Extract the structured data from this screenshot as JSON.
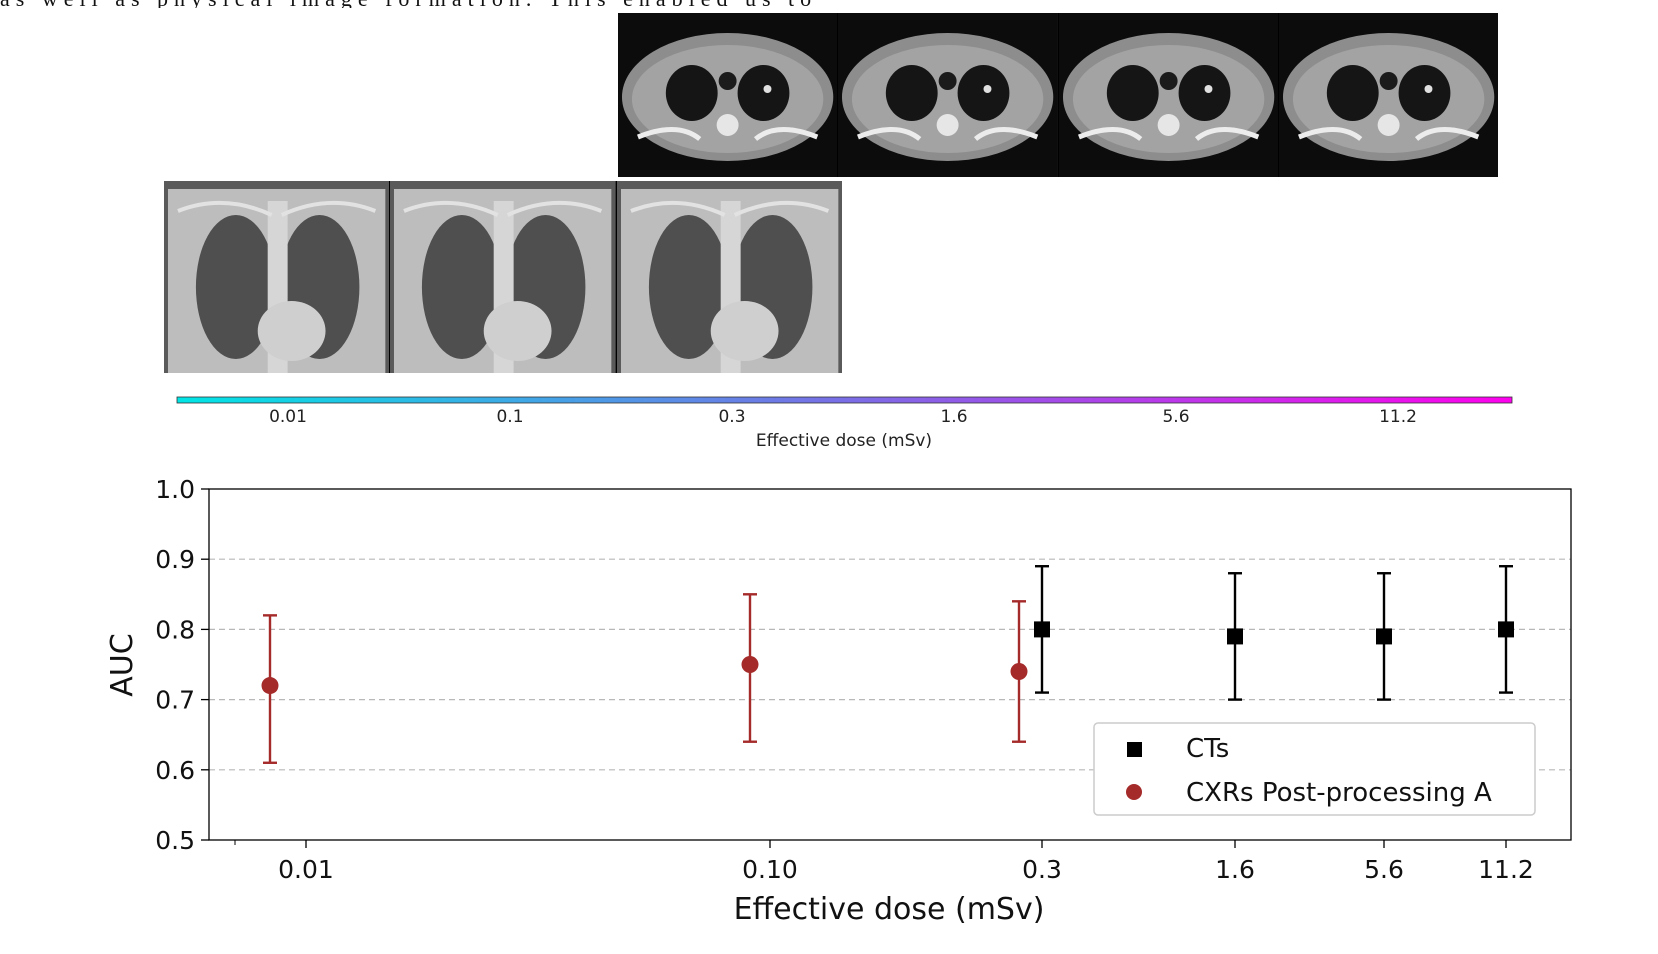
{
  "page": {
    "top_text": "as well as physical image formation. This enabled us to"
  },
  "images": {
    "ct_panels": [
      "ct-slice",
      "ct-slice",
      "ct-slice",
      "ct-slice"
    ],
    "cxr_panels": [
      "chest-xray",
      "chest-xray",
      "chest-xray"
    ]
  },
  "color_scale": {
    "ticks": [
      "0.01",
      "0.1",
      "0.3",
      "1.6",
      "5.6",
      "11.2"
    ],
    "label": "Effective dose (mSv)",
    "colors": [
      "#00e5e5",
      "#ff00ee"
    ]
  },
  "chart_data": {
    "type": "scatter",
    "xlabel": "Effective dose (mSv)",
    "ylabel": "AUC",
    "ylim": [
      0.5,
      1.0
    ],
    "yticks": [
      "0.5",
      "0.6",
      "0.7",
      "0.8",
      "0.9",
      "1.0"
    ],
    "xticks": [
      "0.01",
      "0.10",
      "0.3",
      "1.6",
      "5.6",
      "11.2"
    ],
    "grid": "horizontal dashed",
    "legend_position": "lower-right",
    "series": [
      {
        "name": "CTs",
        "marker": "square",
        "color": "#000000",
        "points": [
          {
            "x": 0.3,
            "y": 0.8,
            "lo": 0.71,
            "hi": 0.89
          },
          {
            "x": 1.6,
            "y": 0.79,
            "lo": 0.7,
            "hi": 0.88
          },
          {
            "x": 5.6,
            "y": 0.79,
            "lo": 0.7,
            "hi": 0.88
          },
          {
            "x": 11.2,
            "y": 0.8,
            "lo": 0.71,
            "hi": 0.89
          }
        ]
      },
      {
        "name": "CXRs Post-processing A",
        "marker": "circle",
        "color": "#a52a2a",
        "points": [
          {
            "x": 0.01,
            "y": 0.72,
            "lo": 0.61,
            "hi": 0.82
          },
          {
            "x": 0.1,
            "y": 0.75,
            "lo": 0.64,
            "hi": 0.85
          },
          {
            "x": 0.3,
            "y": 0.74,
            "lo": 0.64,
            "hi": 0.84
          }
        ]
      }
    ]
  }
}
